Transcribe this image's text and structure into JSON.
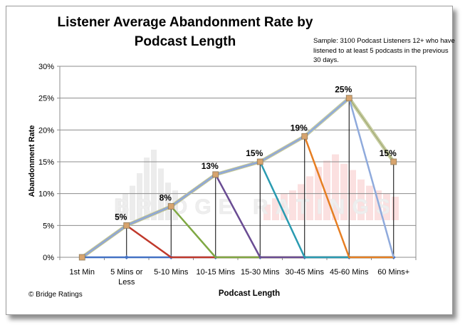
{
  "chart_data": {
    "type": "line",
    "title": "Listener Average Abandonment Rate by Podcast Length",
    "note": "Sample: 3100 Podcast Listeners 12+ who have listened to at least 5 podcasts in the previous 30 days.",
    "xlabel": "Podcast Length",
    "ylabel": "Abandonment Rate",
    "footer": "© Bridge Ratings",
    "watermark": "BRIDGE RATINGS",
    "categories": [
      "1st Min",
      "5 Mins or Less",
      "5-10 Mins",
      "10-15 Mins",
      "15-30 Mins",
      "30-45 Mins",
      "45-60 Mins",
      "60 Mins+"
    ],
    "category_lines": [
      [
        "1st Min"
      ],
      [
        "5 Mins or",
        "Less"
      ],
      [
        "5-10 Mins"
      ],
      [
        "10-15 Mins"
      ],
      [
        "15-30 Mins"
      ],
      [
        "30-45 Mins"
      ],
      [
        "45-60 Mins"
      ],
      [
        "60 Mins+"
      ]
    ],
    "yticks": [
      "0%",
      "5%",
      "10%",
      "15%",
      "20%",
      "25%",
      "30%"
    ],
    "ylim": [
      0,
      30
    ],
    "grid": true,
    "data_labels": [
      "5%",
      "8%",
      "13%",
      "15%",
      "19%",
      "25%",
      "15%"
    ],
    "overall": {
      "values": [
        0,
        5,
        8,
        13,
        15,
        19,
        25,
        15
      ],
      "color": "#c6cca0"
    },
    "series": [
      {
        "values": [
          0,
          0,
          0,
          0,
          0,
          0,
          0,
          0
        ],
        "color": "#4472c4"
      },
      {
        "values": [
          0,
          5,
          0,
          0,
          0,
          0,
          0,
          0
        ],
        "color": "#c0392b"
      },
      {
        "values": [
          0,
          5,
          8,
          0,
          0,
          0,
          0,
          0
        ],
        "color": "#7fa843"
      },
      {
        "values": [
          0,
          5,
          8,
          13,
          0,
          0,
          0,
          0
        ],
        "color": "#6a4c93"
      },
      {
        "values": [
          0,
          5,
          8,
          13,
          15,
          0,
          0,
          0
        ],
        "color": "#2a9bb1"
      },
      {
        "values": [
          0,
          5,
          8,
          13,
          15,
          19,
          0,
          0
        ],
        "color": "#e67e22"
      },
      {
        "values": [
          0,
          5,
          8,
          13,
          15,
          19,
          25,
          0
        ],
        "color": "#8faadc"
      }
    ]
  }
}
